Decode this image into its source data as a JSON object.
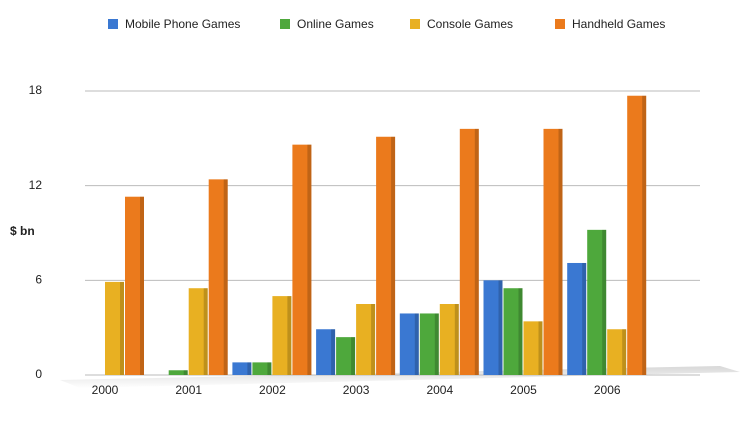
{
  "chart_data": {
    "type": "bar",
    "y_label": "$ bn",
    "categories": [
      "2000",
      "2001",
      "2002",
      "2003",
      "2004",
      "2005",
      "2006"
    ],
    "series": [
      {
        "name": "Mobile Phone Games",
        "color": "#3a78d2",
        "values": [
          0,
          0,
          0.8,
          2.9,
          3.9,
          6.0,
          7.1
        ]
      },
      {
        "name": "Online Games",
        "color": "#4ea83c",
        "values": [
          0,
          0.3,
          0.8,
          2.4,
          3.9,
          5.5,
          9.2
        ]
      },
      {
        "name": "Console Games",
        "color": "#e8b022",
        "values": [
          5.9,
          5.5,
          5.0,
          4.5,
          4.5,
          3.4,
          2.9
        ]
      },
      {
        "name": "Handheld Games",
        "color": "#eb7a1c",
        "values": [
          11.3,
          12.4,
          14.6,
          15.1,
          15.6,
          15.6,
          17.7
        ]
      }
    ],
    "ylim": [
      0,
      18
    ],
    "yticks": [
      0,
      6,
      12,
      18
    ],
    "grid": true,
    "legend": "top"
  }
}
